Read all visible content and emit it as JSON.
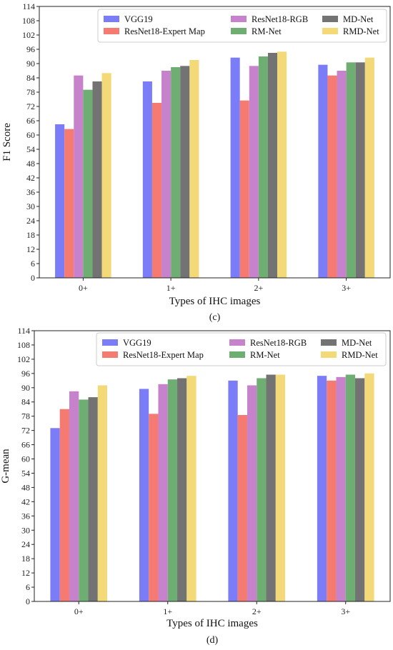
{
  "colors": {
    "VGG19": "#7b7cf7",
    "ResNet18-Expert Map": "#f47a72",
    "ResNet18-RGB": "#c683cc",
    "RM-Net": "#6fae72",
    "MD-Net": "#737373",
    "RMD-Net": "#f3d978"
  },
  "chart_data": [
    {
      "type": "bar",
      "caption": "(c)",
      "xlabel": "Types of IHC images",
      "ylabel": "F1 Score",
      "ylim": [
        0,
        114
      ],
      "yticks": [
        0,
        6,
        12,
        18,
        24,
        30,
        36,
        42,
        48,
        54,
        60,
        66,
        72,
        78,
        84,
        90,
        96,
        102,
        108,
        114
      ],
      "categories": [
        "0+",
        "1+",
        "2+",
        "3+"
      ],
      "legend_position": "top-right",
      "series": [
        {
          "name": "VGG19",
          "values": [
            64.5,
            82.5,
            92.5,
            89.5
          ]
        },
        {
          "name": "ResNet18-Expert Map",
          "values": [
            62.5,
            73.5,
            74.5,
            85.0
          ]
        },
        {
          "name": "ResNet18-RGB",
          "values": [
            85.0,
            87.0,
            89.0,
            87.0
          ]
        },
        {
          "name": "RM-Net",
          "values": [
            79.0,
            88.5,
            93.0,
            90.5
          ]
        },
        {
          "name": "MD-Net",
          "values": [
            82.5,
            89.0,
            94.5,
            90.5
          ]
        },
        {
          "name": "RMD-Net",
          "values": [
            86.0,
            91.5,
            95.0,
            92.5
          ]
        }
      ]
    },
    {
      "type": "bar",
      "caption": "(d)",
      "xlabel": "Types of IHC images",
      "ylabel": "G-mean",
      "ylim": [
        0,
        114
      ],
      "yticks": [
        0,
        6,
        12,
        18,
        24,
        30,
        36,
        42,
        48,
        54,
        60,
        66,
        72,
        78,
        84,
        90,
        96,
        102,
        108,
        114
      ],
      "categories": [
        "0+",
        "1+",
        "2+",
        "3+"
      ],
      "legend_position": "top-right",
      "series": [
        {
          "name": "VGG19",
          "values": [
            73.0,
            89.5,
            93.0,
            95.0
          ]
        },
        {
          "name": "ResNet18-Expert Map",
          "values": [
            81.0,
            79.0,
            78.5,
            93.0
          ]
        },
        {
          "name": "ResNet18-RGB",
          "values": [
            88.5,
            91.5,
            91.0,
            94.5
          ]
        },
        {
          "name": "RM-Net",
          "values": [
            85.0,
            93.5,
            94.0,
            95.5
          ]
        },
        {
          "name": "MD-Net",
          "values": [
            86.0,
            94.0,
            95.5,
            94.0
          ]
        },
        {
          "name": "RMD-Net",
          "values": [
            91.0,
            95.0,
            95.5,
            96.0
          ]
        }
      ]
    }
  ]
}
